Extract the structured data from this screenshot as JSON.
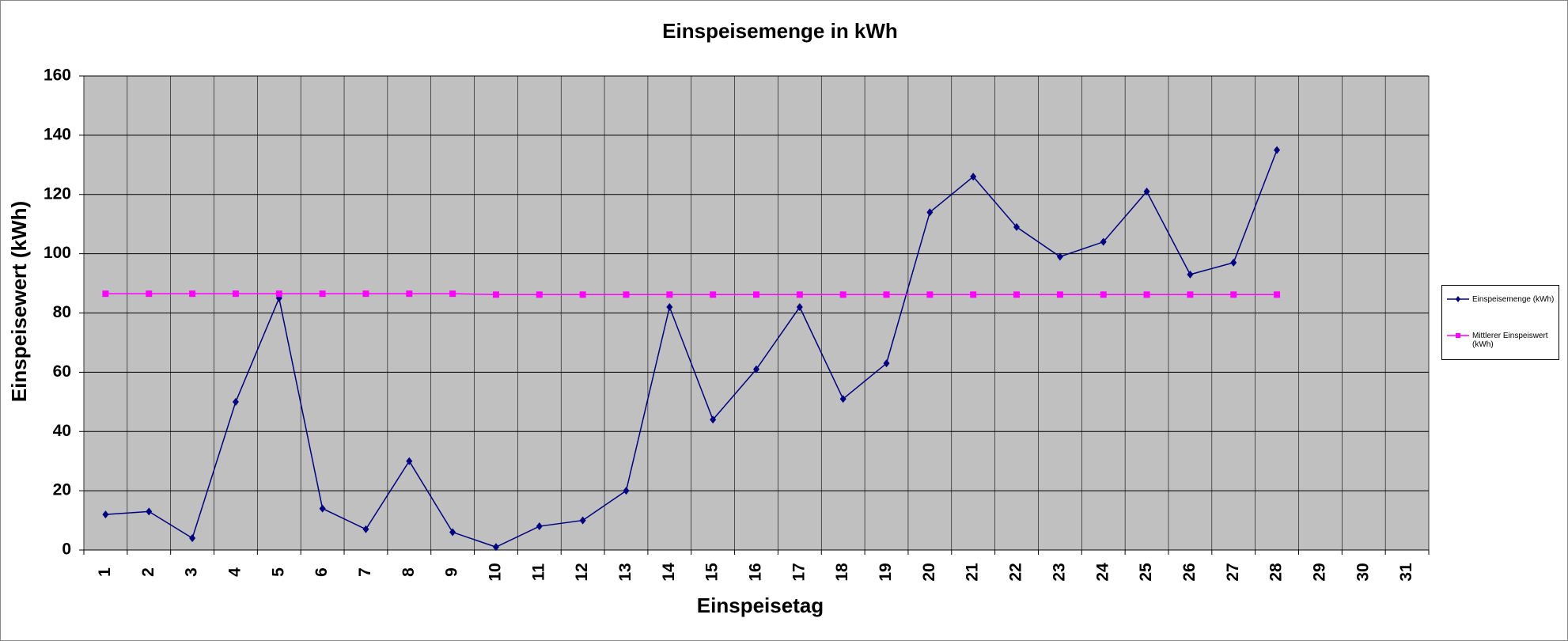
{
  "chart_data": {
    "type": "line",
    "title": "Einspeisemenge in kWh",
    "x_label": "Einspeisetag",
    "y_label": "Einspeisewert  (kWh)",
    "categories": [
      1,
      2,
      3,
      4,
      5,
      6,
      7,
      8,
      9,
      10,
      11,
      12,
      13,
      14,
      15,
      16,
      17,
      18,
      19,
      20,
      21,
      22,
      23,
      24,
      25,
      26,
      27,
      28,
      29,
      30,
      31
    ],
    "series": [
      {
        "name": "Einspeisemenge (kWh)",
        "color": "#000080",
        "marker": "diamond",
        "values": [
          12,
          13,
          4,
          50,
          85,
          14,
          7,
          30,
          6,
          1,
          8,
          10,
          20,
          82,
          44,
          61,
          82,
          51,
          63,
          114,
          126,
          109,
          99,
          104,
          121,
          93,
          97,
          135,
          null,
          null,
          null
        ]
      },
      {
        "name": "Mittlerer Einspeiswert (kWh)",
        "color": "#ff00ff",
        "marker": "square",
        "values": [
          86.5,
          86.5,
          86.5,
          86.5,
          86.5,
          86.5,
          86.5,
          86.5,
          86.5,
          86.2,
          86.2,
          86.2,
          86.2,
          86.2,
          86.2,
          86.2,
          86.2,
          86.2,
          86.2,
          86.2,
          86.2,
          86.2,
          86.2,
          86.2,
          86.2,
          86.2,
          86.2,
          86.2,
          null,
          null,
          null
        ]
      }
    ],
    "ylim": [
      0,
      160
    ],
    "yticks": [
      0,
      20,
      40,
      60,
      80,
      100,
      120,
      140,
      160
    ],
    "grid": true,
    "legend": "right"
  }
}
